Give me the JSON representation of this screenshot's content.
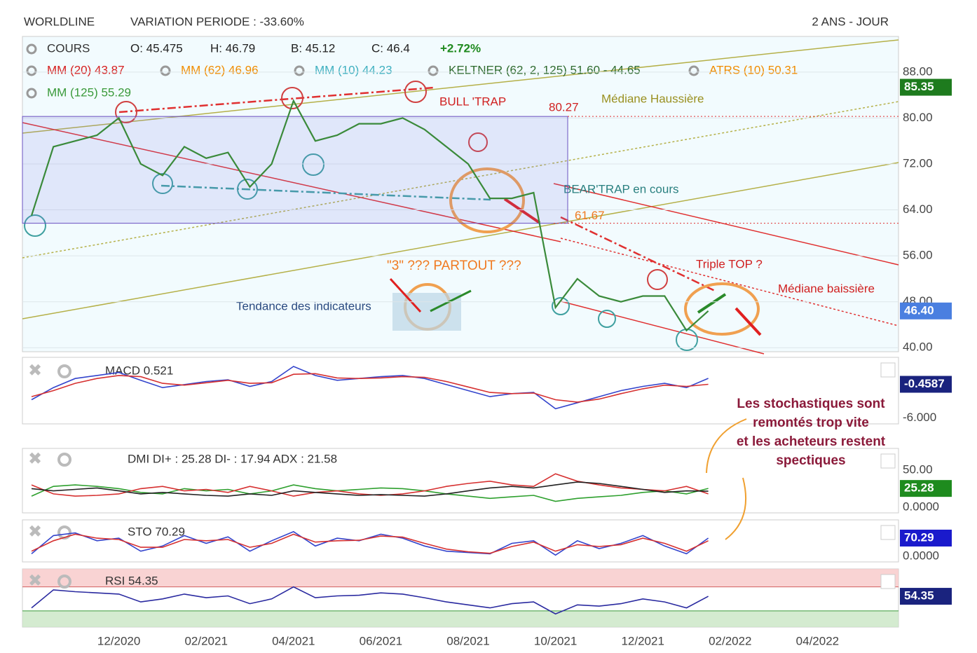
{
  "header": {
    "title": "WORLDLINE",
    "variation": "VARIATION PERIODE : -33.60%",
    "period": "2 ANS - JOUR"
  },
  "legend": [
    {
      "text": "COURS",
      "color": "#333333"
    },
    {
      "text": "O: 45.475",
      "color": "#222222"
    },
    {
      "text": "H: 46.79",
      "color": "#222222"
    },
    {
      "text": "B: 45.12",
      "color": "#222222"
    },
    {
      "text": "C: 46.4",
      "color": "#222222"
    },
    {
      "text": "+2.72%",
      "color": "#1f8a1f"
    },
    {
      "text": "MM (20) 43.87",
      "color": "#d62020"
    },
    {
      "text": "MM (62) 46.96",
      "color": "#f08c00"
    },
    {
      "text": "MM (10) 44.23",
      "color": "#3fb0c0"
    },
    {
      "text": "KELTNER (62, 2, 125) 51.60 - 44.65",
      "color": "#2f6b2f"
    },
    {
      "text": "ATRS (10) 50.31",
      "color": "#f08c00"
    },
    {
      "text": "MM (125) 55.29",
      "color": "#3a9a3a"
    }
  ],
  "annotations": {
    "bull_trap": "BULL 'TRAP",
    "mediane_haussiere": "Médiane Haussière",
    "bear_trap": "BEAR'TRAP en cours",
    "partout": "\"3\" ??? PARTOUT ???",
    "tendance": "Tendance des indicateurs",
    "triple_top": "Triple TOP ?",
    "mediane_baissiere": "Médiane baissière",
    "note": [
      "Les stochastiques sont",
      "remontés trop vite",
      "et les acheteurs restent",
      "spectiques"
    ]
  },
  "chart_data": [
    {
      "type": "line",
      "title": "COURS",
      "categories": [
        null,
        null,
        null,
        null,
        "12/2020",
        null,
        null,
        null,
        "02/2021",
        null,
        null,
        null,
        "04/2021",
        null,
        null,
        null,
        "06/2021",
        null,
        null,
        null,
        "08/2021",
        null,
        null,
        null,
        "10/2021",
        null,
        null,
        null,
        "12/2021",
        null,
        null,
        null,
        "02/2022",
        null,
        null,
        null,
        "04/2022",
        null,
        null,
        null
      ],
      "series": [
        {
          "name": "COURS",
          "color": "#3a8a3a",
          "values": [
            63,
            75,
            76,
            77,
            80,
            72,
            70,
            75,
            73,
            74,
            68,
            72,
            83,
            76,
            77,
            79,
            79,
            80,
            78,
            75,
            72,
            66,
            66,
            67,
            47,
            52,
            49,
            48,
            49,
            49,
            43,
            46.4,
            null,
            null,
            null,
            null,
            null,
            null,
            null,
            null
          ]
        }
      ],
      "ylim": [
        39.3,
        94.2
      ],
      "yticks": [
        {
          "value": 40,
          "label": "40.00"
        },
        {
          "value": 48,
          "label": "48.00"
        },
        {
          "value": 56,
          "label": "56.00"
        },
        {
          "value": 64,
          "label": "64.00"
        },
        {
          "value": 72,
          "label": "72.00"
        },
        {
          "value": 80,
          "label": "80.00"
        },
        {
          "value": 88,
          "label": "88.00"
        }
      ],
      "levels": [
        80.27,
        61.67
      ],
      "badges": [
        {
          "value": 85.35,
          "label": "85.35",
          "color": "#1e7b1e"
        },
        {
          "value": 46.4,
          "label": "46.40",
          "color": "#4a7fe0"
        }
      ],
      "grid": true
    },
    {
      "type": "line",
      "title": "MACD 0.521",
      "series": [
        {
          "name": "MACD",
          "color": "#3344cc",
          "values": [
            -3,
            -1,
            0.5,
            1,
            1.5,
            0.2,
            -1,
            -0.5,
            0,
            0.3,
            -0.8,
            0,
            2.5,
            1,
            0.2,
            0.5,
            0.8,
            1,
            0.5,
            -0.5,
            -1.5,
            -2.5,
            -2,
            -1.8,
            -4.5,
            -3.5,
            -2.5,
            -1.5,
            -0.8,
            -0.3,
            -1,
            0.521
          ]
        },
        {
          "name": "Signal",
          "color": "#d63030",
          "values": [
            -2.5,
            -1.5,
            -0.3,
            0.5,
            1,
            0.8,
            -0.3,
            -0.6,
            -0.2,
            0.2,
            -0.3,
            -0.2,
            1.2,
            1.3,
            0.6,
            0.5,
            0.6,
            0.8,
            0.7,
            0,
            -0.9,
            -1.8,
            -2,
            -1.9,
            -3,
            -3.4,
            -2.9,
            -2,
            -1.2,
            -0.6,
            -0.8,
            -0.4587
          ]
        }
      ],
      "ylim": [
        -7,
        4
      ],
      "yticks": [
        {
          "value": -6,
          "label": "-6.000"
        }
      ],
      "badges": [
        {
          "value": -0.4587,
          "label": "-0.4587",
          "color": "#1a237e"
        }
      ]
    },
    {
      "type": "line",
      "title": "DMI DI+ : 25.28 DI- : 17.94 ADX : 21.58",
      "series": [
        {
          "name": "DI+",
          "color": "#2ea02e",
          "values": [
            15,
            28,
            30,
            28,
            25,
            20,
            18,
            25,
            22,
            24,
            18,
            22,
            30,
            25,
            22,
            24,
            26,
            25,
            22,
            18,
            15,
            12,
            14,
            16,
            8,
            12,
            14,
            16,
            20,
            22,
            18,
            25.28
          ]
        },
        {
          "name": "DI-",
          "color": "#d63030",
          "values": [
            30,
            18,
            15,
            16,
            18,
            25,
            28,
            22,
            24,
            20,
            28,
            22,
            15,
            20,
            22,
            18,
            16,
            18,
            22,
            28,
            32,
            35,
            30,
            28,
            45,
            35,
            30,
            26,
            24,
            22,
            28,
            17.94
          ]
        },
        {
          "name": "ADX",
          "color": "#222222",
          "values": [
            25,
            22,
            24,
            26,
            22,
            18,
            20,
            18,
            16,
            15,
            18,
            16,
            22,
            20,
            18,
            16,
            17,
            16,
            15,
            18,
            22,
            26,
            28,
            26,
            30,
            34,
            32,
            28,
            24,
            20,
            22,
            21.58
          ]
        }
      ],
      "ylim": [
        -7.5,
        79
      ],
      "yticks": [
        {
          "value": 50,
          "label": "50.00"
        },
        {
          "value": 0,
          "label": "0.0000"
        }
      ],
      "badges": [
        {
          "value": 25.28,
          "label": "25.28",
          "color": "#1e8b1e"
        }
      ]
    },
    {
      "type": "line",
      "title": "STO 70.29",
      "series": [
        {
          "name": "%K",
          "color": "#3344cc",
          "values": [
            10,
            80,
            90,
            60,
            70,
            20,
            40,
            80,
            50,
            75,
            20,
            60,
            95,
            40,
            70,
            60,
            85,
            70,
            40,
            20,
            15,
            10,
            50,
            60,
            5,
            60,
            30,
            50,
            80,
            40,
            10,
            70.29
          ]
        },
        {
          "name": "%D",
          "color": "#d63030",
          "values": [
            20,
            60,
            85,
            70,
            65,
            35,
            35,
            65,
            60,
            65,
            35,
            50,
            85,
            55,
            60,
            62,
            78,
            74,
            50,
            28,
            18,
            12,
            38,
            55,
            20,
            45,
            38,
            45,
            70,
            50,
            20,
            60
          ]
        }
      ],
      "ylim": [
        -21,
        140
      ],
      "yticks": [
        {
          "value": 0,
          "label": "0.0000"
        }
      ],
      "badges": [
        {
          "value": 70.29,
          "label": "70.29",
          "color": "#1a1acc"
        }
      ]
    },
    {
      "type": "line",
      "title": "RSI 54.35",
      "series": [
        {
          "name": "RSI",
          "color": "#2a2aa0",
          "values": [
            35,
            65,
            62,
            60,
            58,
            45,
            50,
            58,
            52,
            55,
            42,
            50,
            70,
            52,
            55,
            56,
            60,
            58,
            52,
            45,
            40,
            35,
            42,
            45,
            25,
            40,
            38,
            42,
            50,
            45,
            35,
            54.35
          ]
        }
      ],
      "ylim": [
        3,
        100
      ],
      "yticks": [],
      "levels": [
        30,
        70
      ],
      "badges": [
        {
          "value": 54.35,
          "label": "54.35",
          "color": "#1a237e"
        }
      ]
    }
  ]
}
